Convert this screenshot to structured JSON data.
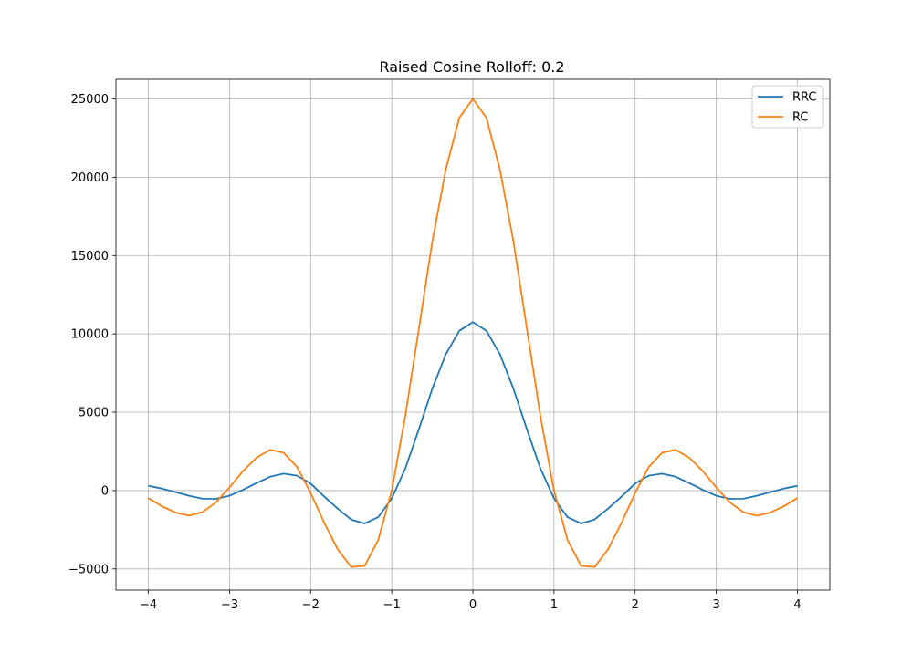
{
  "chart_data": {
    "type": "line",
    "title": "Raised Cosine Rolloff: 0.2",
    "xlabel": "",
    "ylabel": "",
    "xlim": [
      -4.4,
      4.4
    ],
    "ylim": [
      -6350,
      26250
    ],
    "xticks": [
      -4,
      -3,
      -2,
      -1,
      0,
      1,
      2,
      3,
      4
    ],
    "xtick_labels": [
      "−4",
      "−3",
      "−2",
      "−1",
      "0",
      "1",
      "2",
      "3",
      "4"
    ],
    "yticks": [
      -5000,
      0,
      5000,
      10000,
      15000,
      20000,
      25000
    ],
    "ytick_labels": [
      "−5000",
      "0",
      "5000",
      "10000",
      "15000",
      "20000",
      "25000"
    ],
    "grid": true,
    "legend_position": "top-right",
    "x": [
      -4.0,
      -3.8333,
      -3.6667,
      -3.5,
      -3.3333,
      -3.1667,
      -3.0,
      -2.8333,
      -2.6667,
      -2.5,
      -2.3333,
      -2.1667,
      -2.0,
      -1.8333,
      -1.6667,
      -1.5,
      -1.3333,
      -1.1667,
      -1.0,
      -0.8333,
      -0.6667,
      -0.5,
      -0.3333,
      -0.1667,
      0.0,
      0.1667,
      0.3333,
      0.5,
      0.6667,
      0.8333,
      1.0,
      1.1667,
      1.3333,
      1.5,
      1.6667,
      1.8333,
      2.0,
      2.1667,
      2.3333,
      2.5,
      2.6667,
      2.8333,
      3.0,
      3.1667,
      3.3333,
      3.5,
      3.6667,
      3.8333,
      4.0
    ],
    "series": [
      {
        "name": "RRC",
        "color": "#1f77b4",
        "values": [
          300,
          130,
          -100,
          -330,
          -520,
          -530,
          -330,
          50,
          480,
          880,
          1080,
          950,
          450,
          -380,
          -1150,
          -1850,
          -2100,
          -1700,
          -500,
          1400,
          3900,
          6500,
          8700,
          10200,
          10750,
          10200,
          8700,
          6500,
          3900,
          1400,
          -500,
          -1700,
          -2100,
          -1850,
          -1150,
          -380,
          450,
          950,
          1080,
          880,
          480,
          50,
          -330,
          -530,
          -520,
          -330,
          -100,
          130,
          300
        ]
      },
      {
        "name": "RC",
        "color": "#ff7f0e",
        "values": [
          -480,
          -1000,
          -1400,
          -1600,
          -1380,
          -750,
          200,
          1250,
          2100,
          2600,
          2420,
          1500,
          -150,
          -2050,
          -3750,
          -4880,
          -4800,
          -3150,
          0,
          4750,
          10300,
          15900,
          20500,
          23800,
          25000,
          23800,
          20500,
          15900,
          10300,
          4750,
          0,
          -3150,
          -4800,
          -4880,
          -3750,
          -2050,
          -150,
          1500,
          2420,
          2600,
          2100,
          1250,
          200,
          -750,
          -1380,
          -1600,
          -1400,
          -1000,
          -480
        ]
      }
    ]
  }
}
